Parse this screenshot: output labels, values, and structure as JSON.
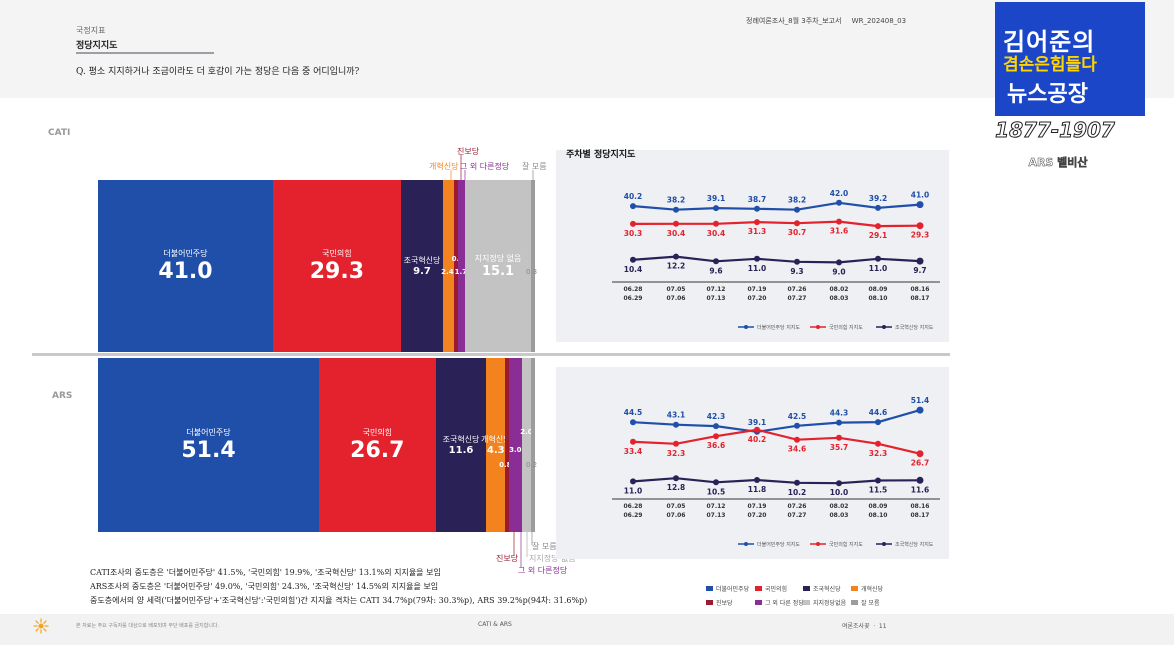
{
  "header": {
    "category": "국정지표",
    "title": "정당지지도",
    "question": "Q. 평소 지지하거나 조금이라도 더 호감이 가는 정당은 다음 중 어디입니까?",
    "report_name": "정례여론조사_8월 3주차_보고서",
    "report_code": "WR_202408_03"
  },
  "logo": {
    "line1": "김어준의",
    "line2": "겸손은힘들다",
    "line3": "뉴스공장",
    "years": "1877-1907",
    "ars": "ARS 벨비산"
  },
  "colors": {
    "democratic": "#1f4fa8",
    "ppp": "#e4222d",
    "rebuild": "#2a2157",
    "reform": "#f2831f",
    "progressive": "#9a1b2f",
    "other": "#8a2e96",
    "none": "#c3c3c3",
    "dontknow": "#9c9c9c"
  },
  "top_labels": {
    "progressive": "진보당",
    "reform": "개혁신당",
    "other": "그 외 다른정당",
    "dontknow": "잘 모름"
  },
  "bottom_labels": {
    "dontknow": "잘 모름",
    "none": "지지정당 없음",
    "progressive": "진보당",
    "other": "그 외 다른정당"
  },
  "chart_data": [
    {
      "type": "bar",
      "name": "CATI",
      "orientation": "stacked-horizontal",
      "categories": [
        "더불어민주당",
        "국민의힘",
        "조국혁신당",
        "개혁신당",
        "진보당",
        "그 외 다른정당",
        "지지정당 없음",
        "잘 모름"
      ],
      "values": [
        41.0,
        29.3,
        9.7,
        2.4,
        0.6,
        1.7,
        15.1,
        0.3
      ],
      "value_labels": [
        "41.0",
        "29.3",
        "9.7",
        "2.4",
        "0.6",
        "1.7",
        "15.1",
        "0.3"
      ],
      "segment_labels": [
        "더불어민주당",
        "국민의힘",
        "조국혁신당",
        "",
        "",
        "",
        "지지정당 없음",
        ""
      ]
    },
    {
      "type": "bar",
      "name": "ARS",
      "orientation": "stacked-horizontal",
      "categories": [
        "더불어민주당",
        "국민의힘",
        "조국혁신당",
        "개혁신당",
        "진보당",
        "그 외 다른정당",
        "지지정당 없음",
        "잘 모름"
      ],
      "values": [
        51.4,
        26.7,
        11.6,
        4.3,
        0.8,
        3.0,
        2.0,
        0.2
      ],
      "value_labels": [
        "51.4",
        "26.7",
        "11.6",
        "4.3",
        "0.8",
        "3.0",
        "2.0",
        "0.2"
      ],
      "segment_labels": [
        "더불어민주당",
        "국민의힘",
        "조국혁신당",
        "개혁신당",
        "",
        "",
        "",
        ""
      ]
    },
    {
      "type": "line",
      "name": "CATI 주차별 정당지지도",
      "title": "주차별 정당지지도",
      "x": [
        [
          "06.28",
          "06.29"
        ],
        [
          "07.05",
          "07.06"
        ],
        [
          "07.12",
          "07.13"
        ],
        [
          "07.19",
          "07.20"
        ],
        [
          "07.26",
          "07.27"
        ],
        [
          "08.02",
          "08.03"
        ],
        [
          "08.09",
          "08.10"
        ],
        [
          "08.16",
          "08.17"
        ]
      ],
      "series": [
        {
          "name": "더불어민주당 지지도",
          "values": [
            40.2,
            38.2,
            39.1,
            38.7,
            38.2,
            42.0,
            39.2,
            41.0
          ]
        },
        {
          "name": "국민의힘 지지도",
          "values": [
            30.3,
            30.4,
            30.4,
            31.3,
            30.7,
            31.6,
            29.1,
            29.3
          ]
        },
        {
          "name": "조국혁신당 지지도",
          "values": [
            10.4,
            12.2,
            9.6,
            11.0,
            9.3,
            9.0,
            11.0,
            9.7
          ]
        }
      ]
    },
    {
      "type": "line",
      "name": "ARS 주차별 정당지지도",
      "x": [
        [
          "06.28",
          "06.29"
        ],
        [
          "07.05",
          "07.06"
        ],
        [
          "07.12",
          "07.13"
        ],
        [
          "07.19",
          "07.20"
        ],
        [
          "07.26",
          "07.27"
        ],
        [
          "08.02",
          "08.03"
        ],
        [
          "08.09",
          "08.10"
        ],
        [
          "08.16",
          "08.17"
        ]
      ],
      "series": [
        {
          "name": "더불어민주당 지지도",
          "values": [
            44.5,
            43.1,
            42.3,
            39.1,
            42.5,
            44.3,
            44.6,
            51.4
          ]
        },
        {
          "name": "국민의힘 지지도",
          "values": [
            33.4,
            32.3,
            36.6,
            40.2,
            34.6,
            35.7,
            32.3,
            26.7
          ]
        },
        {
          "name": "조국혁신당 지지도",
          "values": [
            11.0,
            12.8,
            10.5,
            11.8,
            10.2,
            10.0,
            11.5,
            11.6
          ]
        }
      ]
    }
  ],
  "legend": [
    {
      "label": "더불어민주당",
      "color": "#1f4fa8"
    },
    {
      "label": "국민의힘",
      "color": "#e4222d"
    },
    {
      "label": "조국혁신당",
      "color": "#2a2157"
    },
    {
      "label": "개혁신당",
      "color": "#f2831f"
    },
    {
      "label": "진보당",
      "color": "#9a1b2f"
    },
    {
      "label": "그 외 다른 정당",
      "color": "#8a2e96"
    },
    {
      "label": "지지정당없음",
      "color": "#c3c3c3"
    },
    {
      "label": "잘 모름",
      "color": "#9c9c9c"
    }
  ],
  "notes": [
    "CATI조사의 중도층은 '더불어민주당' 41.5%, '국민의힘' 19.9%, '조국혁신당' 13.1%의 지지율을 보임",
    "ARS조사의 중도층은 '더불어민주당' 49.0%, '국민의힘' 24.3%, '조국혁신당' 14.5%의 지지율을 보임",
    "중도층에서의 양 세력('더불어민주당'+'조국혁신당':'국민의힘')간 지지율 격차는 CATI 34.7%p(79차: 30.3%p), ARS 39.2%p(94차: 31.6%p)"
  ],
  "footer": {
    "left": "본 자료는 주요 구독자를 대상으로 배포되며 무단 배포를 금지합니다.",
    "mid": "CATI & ARS",
    "right": "여론조사꽃 ㆍ 11"
  }
}
